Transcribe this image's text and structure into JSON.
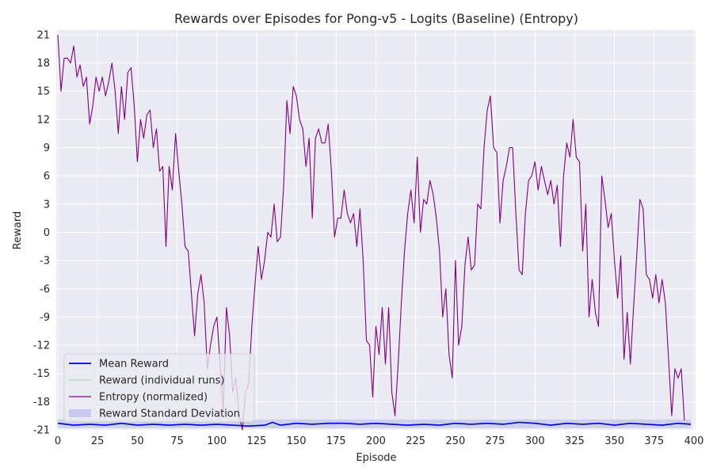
{
  "chart_data": {
    "type": "line",
    "title": "Rewards over Episodes for Pong-v5 - Logits (Baseline) (Entropy)",
    "xlabel": "Episode",
    "ylabel": "Reward",
    "xlim": [
      -1,
      401
    ],
    "ylim": [
      -21,
      21.5
    ],
    "xticks": [
      0,
      25,
      50,
      75,
      100,
      125,
      150,
      175,
      200,
      225,
      250,
      275,
      300,
      325,
      350,
      375,
      400
    ],
    "yticks": [
      -21,
      -18,
      -15,
      -12,
      -9,
      -6,
      -3,
      0,
      3,
      6,
      9,
      12,
      15,
      18,
      21
    ],
    "grid": true,
    "background": "#eaeaf2",
    "legend_position": "lower-left",
    "legend": [
      {
        "label": "Mean Reward",
        "kind": "line",
        "color": "#0000cc"
      },
      {
        "label": "Reward (individual runs)",
        "kind": "line",
        "color": "#b7d8b7"
      },
      {
        "label": "Entropy (normalized)",
        "kind": "line",
        "color": "#800080"
      },
      {
        "label": "Reward Standard Deviation",
        "kind": "patch",
        "color": "#c8c8f0"
      }
    ],
    "series": [
      {
        "name": "Mean Reward",
        "color": "#0000cc",
        "points": [
          [
            0,
            -20.3
          ],
          [
            10,
            -20.5
          ],
          [
            20,
            -20.4
          ],
          [
            30,
            -20.5
          ],
          [
            40,
            -20.3
          ],
          [
            50,
            -20.5
          ],
          [
            60,
            -20.4
          ],
          [
            70,
            -20.5
          ],
          [
            80,
            -20.4
          ],
          [
            90,
            -20.5
          ],
          [
            100,
            -20.4
          ],
          [
            110,
            -20.5
          ],
          [
            120,
            -20.6
          ],
          [
            130,
            -20.5
          ],
          [
            135,
            -20.2
          ],
          [
            140,
            -20.5
          ],
          [
            150,
            -20.3
          ],
          [
            160,
            -20.4
          ],
          [
            170,
            -20.3
          ],
          [
            180,
            -20.3
          ],
          [
            190,
            -20.4
          ],
          [
            200,
            -20.3
          ],
          [
            210,
            -20.4
          ],
          [
            220,
            -20.5
          ],
          [
            230,
            -20.4
          ],
          [
            240,
            -20.5
          ],
          [
            250,
            -20.3
          ],
          [
            260,
            -20.4
          ],
          [
            270,
            -20.3
          ],
          [
            280,
            -20.4
          ],
          [
            290,
            -20.2
          ],
          [
            300,
            -20.3
          ],
          [
            310,
            -20.5
          ],
          [
            320,
            -20.3
          ],
          [
            330,
            -20.4
          ],
          [
            340,
            -20.3
          ],
          [
            350,
            -20.5
          ],
          [
            360,
            -20.3
          ],
          [
            370,
            -20.4
          ],
          [
            380,
            -20.5
          ],
          [
            390,
            -20.3
          ],
          [
            398,
            -20.4
          ]
        ]
      },
      {
        "name": "Entropy (normalized)",
        "color": "#800080",
        "points": [
          [
            0,
            21
          ],
          [
            2,
            15
          ],
          [
            4,
            18.5
          ],
          [
            6,
            18.5
          ],
          [
            8,
            18
          ],
          [
            10,
            19.8
          ],
          [
            12,
            16.5
          ],
          [
            14,
            17.8
          ],
          [
            16,
            15.5
          ],
          [
            18,
            16.5
          ],
          [
            20,
            11.5
          ],
          [
            22,
            13.5
          ],
          [
            24,
            16.5
          ],
          [
            26,
            15
          ],
          [
            28,
            16.5
          ],
          [
            30,
            14.5
          ],
          [
            32,
            16
          ],
          [
            34,
            18
          ],
          [
            36,
            15
          ],
          [
            38,
            10.5
          ],
          [
            40,
            15.5
          ],
          [
            42,
            12
          ],
          [
            44,
            17
          ],
          [
            46,
            17.5
          ],
          [
            48,
            13.5
          ],
          [
            50,
            7.5
          ],
          [
            52,
            12
          ],
          [
            54,
            10
          ],
          [
            56,
            12.5
          ],
          [
            58,
            13
          ],
          [
            60,
            9
          ],
          [
            62,
            11
          ],
          [
            64,
            6.5
          ],
          [
            66,
            7
          ],
          [
            68,
            -1.5
          ],
          [
            70,
            7
          ],
          [
            72,
            4.5
          ],
          [
            74,
            10.5
          ],
          [
            76,
            6.5
          ],
          [
            78,
            3
          ],
          [
            80,
            -1.5
          ],
          [
            82,
            -2
          ],
          [
            84,
            -6.5
          ],
          [
            86,
            -11
          ],
          [
            88,
            -6.5
          ],
          [
            90,
            -4.5
          ],
          [
            92,
            -7.5
          ],
          [
            94,
            -14.5
          ],
          [
            96,
            -12
          ],
          [
            98,
            -10
          ],
          [
            100,
            -9
          ],
          [
            102,
            -14
          ],
          [
            104,
            -19
          ],
          [
            106,
            -8
          ],
          [
            108,
            -11
          ],
          [
            110,
            -17
          ],
          [
            112,
            -15.5
          ],
          [
            114,
            -19.5
          ],
          [
            116,
            -21
          ],
          [
            118,
            -17
          ],
          [
            120,
            -16
          ],
          [
            122,
            -10
          ],
          [
            124,
            -5.5
          ],
          [
            126,
            -1.5
          ],
          [
            128,
            -5
          ],
          [
            130,
            -3
          ],
          [
            132,
            0
          ],
          [
            134,
            -0.5
          ],
          [
            136,
            3
          ],
          [
            138,
            -1
          ],
          [
            140,
            -0.5
          ],
          [
            142,
            5
          ],
          [
            144,
            14
          ],
          [
            146,
            10.5
          ],
          [
            148,
            15.5
          ],
          [
            150,
            14.5
          ],
          [
            152,
            12
          ],
          [
            154,
            11
          ],
          [
            156,
            7
          ],
          [
            158,
            10
          ],
          [
            160,
            1.5
          ],
          [
            162,
            10
          ],
          [
            164,
            11
          ],
          [
            166,
            9.5
          ],
          [
            168,
            9.5
          ],
          [
            170,
            11.5
          ],
          [
            172,
            6.5
          ],
          [
            174,
            -0.5
          ],
          [
            176,
            1.5
          ],
          [
            178,
            1.5
          ],
          [
            180,
            4.5
          ],
          [
            182,
            2
          ],
          [
            184,
            1
          ],
          [
            186,
            2
          ],
          [
            188,
            -1.5
          ],
          [
            190,
            2.5
          ],
          [
            192,
            -3
          ],
          [
            194,
            -11.5
          ],
          [
            196,
            -12
          ],
          [
            198,
            -17.5
          ],
          [
            200,
            -10
          ],
          [
            202,
            -13
          ],
          [
            204,
            -8
          ],
          [
            206,
            -14
          ],
          [
            208,
            -8
          ],
          [
            210,
            -17
          ],
          [
            212,
            -19.5
          ],
          [
            214,
            -14
          ],
          [
            216,
            -7.5
          ],
          [
            218,
            -2
          ],
          [
            220,
            2
          ],
          [
            222,
            4.5
          ],
          [
            224,
            1
          ],
          [
            226,
            8
          ],
          [
            228,
            0
          ],
          [
            230,
            3.5
          ],
          [
            232,
            3
          ],
          [
            234,
            5.5
          ],
          [
            236,
            4
          ],
          [
            238,
            1.5
          ],
          [
            240,
            -2
          ],
          [
            242,
            -9
          ],
          [
            244,
            -6
          ],
          [
            246,
            -13
          ],
          [
            248,
            -15.5
          ],
          [
            250,
            -3
          ],
          [
            252,
            -12
          ],
          [
            254,
            -10
          ],
          [
            256,
            -3.5
          ],
          [
            258,
            -0.5
          ],
          [
            260,
            -4
          ],
          [
            262,
            -3.5
          ],
          [
            264,
            3
          ],
          [
            266,
            2.5
          ],
          [
            268,
            9
          ],
          [
            270,
            13
          ],
          [
            272,
            14.5
          ],
          [
            274,
            9
          ],
          [
            276,
            8.5
          ],
          [
            278,
            1
          ],
          [
            280,
            5.5
          ],
          [
            282,
            7
          ],
          [
            284,
            9
          ],
          [
            286,
            9
          ],
          [
            288,
            2
          ],
          [
            290,
            -4
          ],
          [
            292,
            -4.5
          ],
          [
            294,
            2
          ],
          [
            296,
            5.5
          ],
          [
            298,
            6
          ],
          [
            300,
            7.5
          ],
          [
            302,
            4.5
          ],
          [
            304,
            7
          ],
          [
            306,
            5.5
          ],
          [
            308,
            4
          ],
          [
            310,
            5.5
          ],
          [
            312,
            3
          ],
          [
            314,
            5
          ],
          [
            316,
            -1.5
          ],
          [
            318,
            6
          ],
          [
            320,
            9.5
          ],
          [
            322,
            8
          ],
          [
            324,
            12
          ],
          [
            326,
            8
          ],
          [
            328,
            7.5
          ],
          [
            330,
            -2
          ],
          [
            332,
            3
          ],
          [
            334,
            -9
          ],
          [
            336,
            -5
          ],
          [
            338,
            -8.5
          ],
          [
            340,
            -10
          ],
          [
            342,
            6
          ],
          [
            344,
            3.5
          ],
          [
            346,
            0.5
          ],
          [
            348,
            2
          ],
          [
            350,
            -3
          ],
          [
            352,
            -7
          ],
          [
            354,
            -2.5
          ],
          [
            356,
            -13.5
          ],
          [
            358,
            -8.5
          ],
          [
            360,
            -14
          ],
          [
            362,
            -8
          ],
          [
            364,
            -2.5
          ],
          [
            366,
            3.5
          ],
          [
            368,
            2.5
          ],
          [
            370,
            -4.5
          ],
          [
            372,
            -5
          ],
          [
            374,
            -7
          ],
          [
            376,
            -4.5
          ],
          [
            378,
            -7.5
          ],
          [
            380,
            -5
          ],
          [
            382,
            -7.5
          ],
          [
            384,
            -13.5
          ],
          [
            386,
            -19.5
          ],
          [
            388,
            -14.5
          ],
          [
            390,
            -15.5
          ],
          [
            392,
            -14.5
          ],
          [
            394,
            -20
          ]
        ]
      },
      {
        "name": "Reward (individual runs)",
        "color": "#b7d8b7",
        "points": [
          [
            0,
            -20.2
          ],
          [
            15,
            -20.6
          ],
          [
            30,
            -20.1
          ],
          [
            45,
            -20.6
          ],
          [
            60,
            -20.2
          ],
          [
            75,
            -20.7
          ],
          [
            90,
            -20.1
          ],
          [
            105,
            -20.6
          ],
          [
            120,
            -20.3
          ],
          [
            135,
            -20.7
          ],
          [
            150,
            -20.1
          ],
          [
            158,
            -19.9
          ],
          [
            165,
            -20.6
          ],
          [
            180,
            -20.0
          ],
          [
            195,
            -20.6
          ],
          [
            210,
            -20.2
          ],
          [
            225,
            -20.7
          ],
          [
            240,
            -20.1
          ],
          [
            255,
            -20.6
          ],
          [
            270,
            -20.0
          ],
          [
            285,
            -20.5
          ],
          [
            295,
            -19.9
          ],
          [
            310,
            -20.6
          ],
          [
            325,
            -20.1
          ],
          [
            340,
            -20.7
          ],
          [
            355,
            -20.1
          ],
          [
            365,
            -19.9
          ],
          [
            380,
            -20.6
          ],
          [
            398,
            -20.2
          ]
        ]
      }
    ],
    "std_band": {
      "name": "Reward Standard Deviation",
      "color": "#c8c8f0",
      "x": [
        0,
        100,
        200,
        300,
        398
      ],
      "lower": [
        -20.8,
        -20.8,
        -20.8,
        -20.8,
        -20.8
      ],
      "upper": [
        -19.9,
        -19.9,
        -19.9,
        -19.9,
        -19.9
      ]
    }
  }
}
